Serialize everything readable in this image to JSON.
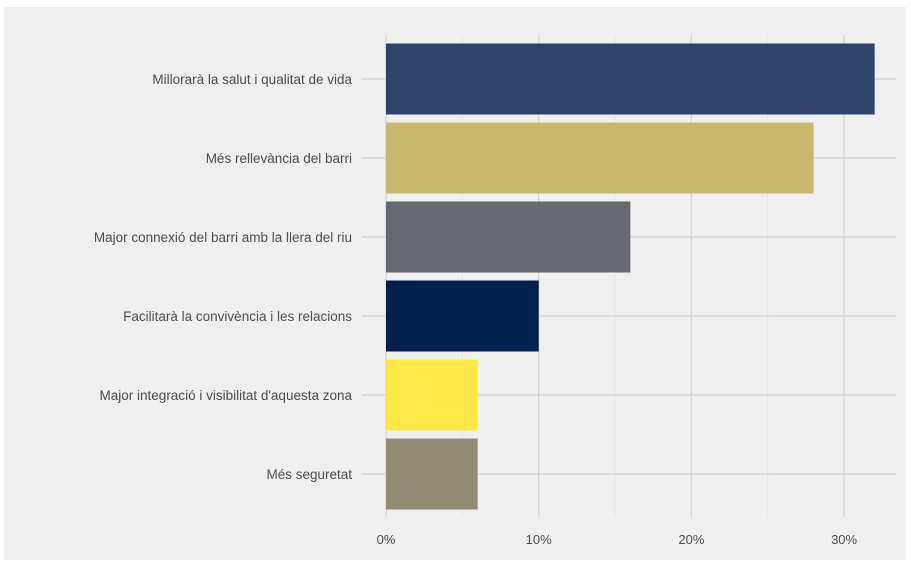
{
  "chart_data": {
    "type": "bar",
    "orientation": "horizontal",
    "categories": [
      "Millorarà la salut i qualitat de vida",
      "Més rellevància del barri",
      "Major connexió del barri amb la llera del riu",
      "Facilitarà la convivència i les relacions",
      "Major integració i visibilitat d'aquesta zona",
      "Més seguretat"
    ],
    "values": [
      32,
      28,
      16,
      10,
      6,
      6
    ],
    "colors": [
      "#2f446d",
      "#c9b86c",
      "#666872",
      "#00204e",
      "#fde845",
      "#928c73"
    ],
    "xlim": [
      0,
      33
    ],
    "x_ticks": [
      0,
      10,
      20,
      30
    ],
    "x_tick_labels": [
      "0%",
      "10%",
      "20%",
      "30%"
    ],
    "title": "",
    "xlabel": "",
    "ylabel": "",
    "grid": true,
    "legend": "none",
    "background": "#f0f0f0"
  }
}
